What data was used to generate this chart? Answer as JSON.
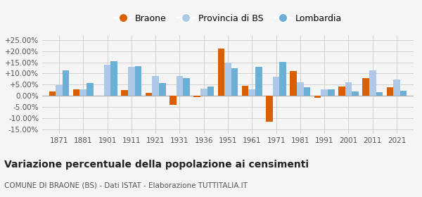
{
  "years": [
    1871,
    1881,
    1901,
    1911,
    1921,
    1931,
    1936,
    1951,
    1961,
    1971,
    1981,
    1991,
    2001,
    2011,
    2021
  ],
  "braone": [
    2.0,
    3.0,
    0.2,
    2.5,
    1.2,
    -4.0,
    -0.5,
    21.0,
    4.5,
    -11.5,
    11.0,
    -1.0,
    4.2,
    7.8,
    3.8
  ],
  "provincia_bs": [
    4.8,
    3.0,
    13.8,
    13.0,
    8.8,
    8.8,
    3.1,
    15.0,
    3.0,
    8.5,
    6.0,
    3.0,
    6.0,
    11.5,
    7.2
  ],
  "lombardia": [
    11.5,
    5.6,
    15.6,
    13.3,
    5.9,
    8.0,
    4.2,
    12.5,
    12.9,
    15.3,
    4.0,
    2.8,
    2.0,
    1.8,
    2.3
  ],
  "braone_color": "#d95f02",
  "provincia_color": "#aec9e8",
  "lombardia_color": "#6baed6",
  "background_color": "#f5f5f5",
  "title": "Variazione percentuale della popolazione ai censimenti",
  "subtitle": "COMUNE DI BRAONE (BS) - Dati ISTAT - Elaborazione TUTTITALIA.IT",
  "ylabel_ticks": [
    "-15.00%",
    "-10.00%",
    "-5.00%",
    "0.00%",
    "+5.00%",
    "+10.00%",
    "+15.00%",
    "+20.00%",
    "+25.00%"
  ],
  "yticks": [
    -15,
    -10,
    -5,
    0,
    5,
    10,
    15,
    20,
    25
  ],
  "ylim": [
    -17,
    27
  ],
  "bar_width": 0.28
}
